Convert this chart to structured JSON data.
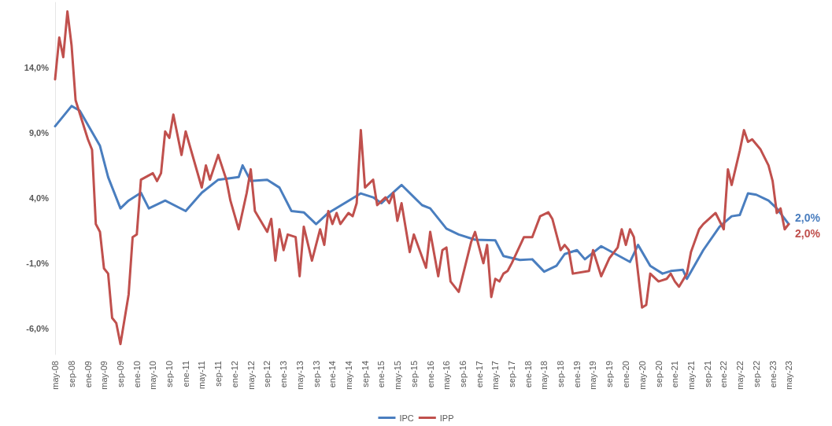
{
  "chart_data": {
    "type": "line",
    "xlim": [
      "2008-05",
      "2023-05"
    ],
    "xticks": [
      {
        "value": "2008-05",
        "label": "may-08"
      },
      {
        "value": "2008-09",
        "label": "sep-08"
      },
      {
        "value": "2009-01",
        "label": "ene-09"
      },
      {
        "value": "2009-05",
        "label": "may-09"
      },
      {
        "value": "2009-09",
        "label": "sep-09"
      },
      {
        "value": "2010-01",
        "label": "ene-10"
      },
      {
        "value": "2010-05",
        "label": "may-10"
      },
      {
        "value": "2010-09",
        "label": "sep-10"
      },
      {
        "value": "2011-01",
        "label": "ene-11"
      },
      {
        "value": "2011-05",
        "label": "may-11"
      },
      {
        "value": "2011-09",
        "label": "sep-11"
      },
      {
        "value": "2012-01",
        "label": "ene-12"
      },
      {
        "value": "2012-05",
        "label": "may-12"
      },
      {
        "value": "2012-09",
        "label": "sep-12"
      },
      {
        "value": "2013-01",
        "label": "ene-13"
      },
      {
        "value": "2013-05",
        "label": "may-13"
      },
      {
        "value": "2013-09",
        "label": "sep-13"
      },
      {
        "value": "2014-01",
        "label": "ene-14"
      },
      {
        "value": "2014-05",
        "label": "may-14"
      },
      {
        "value": "2014-09",
        "label": "sep-14"
      },
      {
        "value": "2015-01",
        "label": "ene-15"
      },
      {
        "value": "2015-05",
        "label": "may-15"
      },
      {
        "value": "2015-09",
        "label": "sep-15"
      },
      {
        "value": "2016-01",
        "label": "ene-16"
      },
      {
        "value": "2016-05",
        "label": "may-16"
      },
      {
        "value": "2016-09",
        "label": "sep-16"
      },
      {
        "value": "2017-01",
        "label": "ene-17"
      },
      {
        "value": "2017-05",
        "label": "may-17"
      },
      {
        "value": "2017-09",
        "label": "sep-17"
      },
      {
        "value": "2018-01",
        "label": "ene-18"
      },
      {
        "value": "2018-05",
        "label": "may-18"
      },
      {
        "value": "2018-09",
        "label": "sep-18"
      },
      {
        "value": "2019-01",
        "label": "ene-19"
      },
      {
        "value": "2019-05",
        "label": "may-19"
      },
      {
        "value": "2019-09",
        "label": "sep-19"
      },
      {
        "value": "2020-01",
        "label": "ene-20"
      },
      {
        "value": "2020-05",
        "label": "may-20"
      },
      {
        "value": "2020-09",
        "label": "sep-20"
      },
      {
        "value": "2021-01",
        "label": "ene-21"
      },
      {
        "value": "2021-05",
        "label": "may-21"
      },
      {
        "value": "2021-09",
        "label": "sep-21"
      },
      {
        "value": "2022-01",
        "label": "ene-22"
      },
      {
        "value": "2022-05",
        "label": "may-22"
      },
      {
        "value": "2022-09",
        "label": "sep-22"
      },
      {
        "value": "2023-01",
        "label": "ene-23"
      },
      {
        "value": "2023-05",
        "label": "may-23"
      }
    ],
    "ylim": [
      -8,
      19
    ],
    "yticks": [
      {
        "value": -6,
        "label": "-6,0%"
      },
      {
        "value": -1,
        "label": "-1,0%"
      },
      {
        "value": 4,
        "label": "4,0%"
      },
      {
        "value": 9,
        "label": "9,0%"
      },
      {
        "value": 14,
        "label": "14,0%"
      }
    ],
    "series": [
      {
        "name": "IPC",
        "color": "#4a7ebf",
        "x": [
          "2008-05",
          "2008-09",
          "2008-11",
          "2009-04",
          "2009-06",
          "2009-09",
          "2009-11",
          "2010-02",
          "2010-04",
          "2010-08",
          "2011-01",
          "2011-05",
          "2011-09",
          "2012-02",
          "2012-03",
          "2012-05",
          "2012-09",
          "2012-12",
          "2013-03",
          "2013-06",
          "2013-09",
          "2013-12",
          "2014-08",
          "2014-11",
          "2015-01",
          "2015-06",
          "2015-11",
          "2016-01",
          "2016-05",
          "2016-08",
          "2016-12",
          "2017-05",
          "2017-07",
          "2017-11",
          "2018-02",
          "2018-05",
          "2018-08",
          "2018-10",
          "2019-01",
          "2019-03",
          "2019-07",
          "2020-02",
          "2020-04",
          "2020-07",
          "2020-10",
          "2020-12",
          "2021-03",
          "2021-04",
          "2021-08",
          "2021-12",
          "2022-03",
          "2022-05",
          "2022-07",
          "2022-09",
          "2022-12",
          "2023-02",
          "2023-05"
        ],
        "values": [
          9.5,
          11.05,
          10.7,
          8.0,
          5.6,
          3.2,
          3.8,
          4.4,
          3.2,
          3.8,
          3.0,
          4.4,
          5.4,
          5.6,
          6.5,
          5.3,
          5.4,
          4.8,
          3.0,
          2.9,
          2.0,
          2.85,
          4.35,
          4.05,
          3.6,
          5.0,
          3.45,
          3.2,
          1.65,
          1.2,
          0.8,
          0.75,
          -0.45,
          -0.75,
          -0.7,
          -1.65,
          -1.2,
          -0.3,
          0.0,
          -0.7,
          0.3,
          -0.9,
          0.4,
          -1.2,
          -1.8,
          -1.6,
          -1.5,
          -2.2,
          0.0,
          1.8,
          2.6,
          2.7,
          4.35,
          4.25,
          3.8,
          3.2,
          2.0
        ]
      },
      {
        "name": "IPP",
        "color": "#c0504d",
        "x": [
          "2008-05",
          "2008-06",
          "2008-07",
          "2008-08",
          "2008-09",
          "2008-10",
          "2009-01",
          "2009-02",
          "2009-03",
          "2009-04",
          "2009-05",
          "2009-06",
          "2009-07",
          "2009-08",
          "2009-09",
          "2009-11",
          "2009-12",
          "2010-01",
          "2010-02",
          "2010-05",
          "2010-06",
          "2010-07",
          "2010-08",
          "2010-09",
          "2010-10",
          "2010-12",
          "2011-01",
          "2011-05",
          "2011-06",
          "2011-07",
          "2011-09",
          "2011-11",
          "2011-12",
          "2012-02",
          "2012-04",
          "2012-05",
          "2012-06",
          "2012-09",
          "2012-10",
          "2012-11",
          "2012-12",
          "2013-01",
          "2013-02",
          "2013-04",
          "2013-05",
          "2013-06",
          "2013-08",
          "2013-10",
          "2013-11",
          "2013-12",
          "2014-01",
          "2014-02",
          "2014-03",
          "2014-05",
          "2014-06",
          "2014-07",
          "2014-08",
          "2014-09",
          "2014-11",
          "2014-12",
          "2015-02",
          "2015-03",
          "2015-04",
          "2015-05",
          "2015-06",
          "2015-08",
          "2015-09",
          "2015-12",
          "2016-01",
          "2016-03",
          "2016-04",
          "2016-05",
          "2016-06",
          "2016-08",
          "2016-11",
          "2016-12",
          "2017-02",
          "2017-03",
          "2017-04",
          "2017-05",
          "2017-06",
          "2017-07",
          "2017-08",
          "2017-09",
          "2017-12",
          "2018-02",
          "2018-04",
          "2018-06",
          "2018-07",
          "2018-09",
          "2018-10",
          "2018-11",
          "2018-12",
          "2019-04",
          "2019-05",
          "2019-07",
          "2019-09",
          "2019-11",
          "2019-12",
          "2020-01",
          "2020-02",
          "2020-03",
          "2020-05",
          "2020-06",
          "2020-07",
          "2020-09",
          "2020-11",
          "2020-12",
          "2021-01",
          "2021-02",
          "2021-04",
          "2021-05",
          "2021-07",
          "2021-08",
          "2021-11",
          "2022-01",
          "2022-02",
          "2022-03",
          "2022-05",
          "2022-06",
          "2022-07",
          "2022-08",
          "2022-10",
          "2022-12",
          "2023-01",
          "2023-02",
          "2023-03",
          "2023-04",
          "2023-05"
        ],
        "values": [
          13.1,
          16.3,
          14.8,
          18.3,
          15.7,
          11.5,
          8.5,
          7.7,
          2.0,
          1.4,
          -1.4,
          -1.8,
          -5.2,
          -5.6,
          -7.2,
          -3.4,
          1.0,
          1.2,
          5.4,
          5.9,
          5.3,
          5.9,
          9.1,
          8.6,
          10.4,
          7.3,
          9.1,
          4.8,
          6.5,
          5.4,
          7.3,
          5.4,
          3.8,
          1.6,
          4.4,
          6.2,
          3.0,
          1.4,
          2.4,
          -0.8,
          1.6,
          0.0,
          1.2,
          1.0,
          -2.0,
          1.8,
          -0.8,
          1.6,
          0.4,
          3.0,
          2.0,
          2.85,
          2.0,
          2.85,
          2.6,
          3.6,
          9.2,
          4.8,
          5.4,
          3.45,
          4.05,
          3.6,
          4.4,
          2.25,
          3.6,
          -0.15,
          1.2,
          -1.35,
          1.4,
          -2.0,
          0.0,
          0.2,
          -2.4,
          -3.2,
          0.6,
          1.4,
          -1.0,
          0.4,
          -3.6,
          -2.2,
          -2.4,
          -1.8,
          -1.6,
          -1.0,
          1.0,
          1.0,
          2.6,
          2.9,
          2.4,
          0.0,
          0.4,
          0.0,
          -1.8,
          -1.6,
          0.0,
          -2.0,
          -0.6,
          0.2,
          1.6,
          0.4,
          1.6,
          1.0,
          -4.4,
          -4.2,
          -1.8,
          -2.4,
          -2.2,
          -1.8,
          -2.4,
          -2.8,
          -1.8,
          -0.15,
          1.6,
          2.0,
          2.85,
          1.6,
          6.2,
          5.0,
          7.65,
          9.2,
          8.3,
          8.5,
          7.75,
          6.5,
          5.3,
          2.85,
          3.2,
          1.6,
          2.0
        ]
      }
    ],
    "annotations": [
      {
        "text": "2,0%",
        "x": "2023-05",
        "y": 2.0
      },
      {
        "text": "2,0%",
        "x": "2023-05",
        "y": 2.0
      }
    ],
    "legend": "bottom",
    "grid": false,
    "marker": "none",
    "line_style": "solid"
  }
}
